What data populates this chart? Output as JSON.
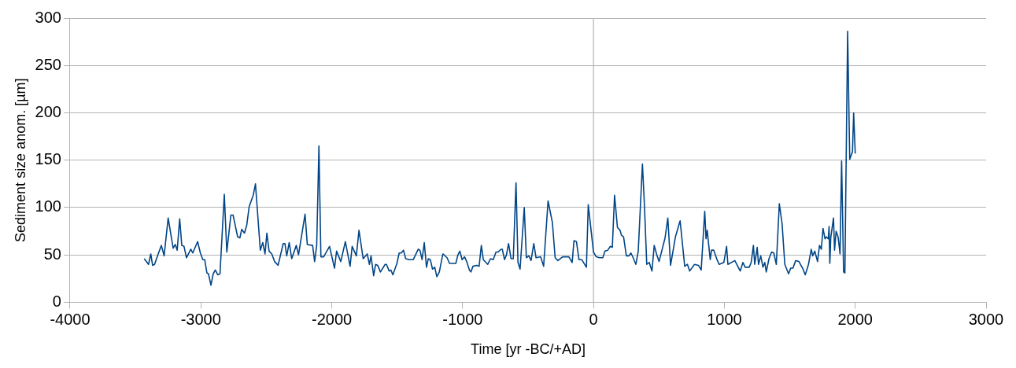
{
  "chart_data": {
    "type": "line",
    "xlabel": "Time [yr -BC/+AD]",
    "ylabel": "Sediment size anom. [µm]",
    "xlim": [
      -4000,
      3000
    ],
    "xticks": [
      -4000,
      -3000,
      -2000,
      -1000,
      0,
      1000,
      2000,
      3000
    ],
    "ylim": [
      0,
      300
    ],
    "yticks": [
      0,
      50,
      100,
      150,
      200,
      250,
      300
    ],
    "grid": "y",
    "legend": false,
    "marker": "none",
    "line_style": "solid",
    "ref_lines": [
      {
        "axis": "x",
        "value": 0,
        "color": "#b3b3b3"
      }
    ],
    "series": [
      {
        "color": "#004586",
        "x": [
          -3433,
          -3400,
          -3383,
          -3369,
          -3354,
          -3329,
          -3302,
          -3281,
          -3250,
          -3212,
          -3196,
          -3181,
          -3162,
          -3146,
          -3129,
          -3110,
          -3077,
          -3062,
          -3025,
          -3004,
          -2985,
          -2971,
          -2954,
          -2942,
          -2923,
          -2906,
          -2890,
          -2871,
          -2854,
          -2821,
          -2802,
          -2771,
          -2754,
          -2719,
          -2702,
          -2688,
          -2667,
          -2650,
          -2631,
          -2600,
          -2583,
          -2546,
          -2527,
          -2510,
          -2496,
          -2479,
          -2458,
          -2437,
          -2410,
          -2371,
          -2358,
          -2344,
          -2325,
          -2306,
          -2271,
          -2254,
          -2204,
          -2187,
          -2146,
          -2131,
          -2115,
          -2098,
          -2083,
          -2062,
          -2017,
          -1979,
          -1963,
          -1931,
          -1896,
          -1860,
          -1844,
          -1812,
          -1792,
          -1760,
          -1729,
          -1712,
          -1700,
          -1680,
          -1665,
          -1649,
          -1628,
          -1592,
          -1582,
          -1561,
          -1548,
          -1533,
          -1502,
          -1485,
          -1469,
          -1452,
          -1435,
          -1408,
          -1377,
          -1339,
          -1326,
          -1310,
          -1293,
          -1276,
          -1262,
          -1247,
          -1230,
          -1213,
          -1197,
          -1178,
          -1151,
          -1119,
          -1100,
          -1052,
          -1036,
          -1021,
          -1004,
          -985,
          -969,
          -948,
          -937,
          -921,
          -891,
          -874,
          -857,
          -842,
          -808,
          -787,
          -766,
          -745,
          -728,
          -707,
          -697,
          -680,
          -665,
          -649,
          -630,
          -613,
          -592,
          -577,
          -561,
          -529,
          -513,
          -494,
          -477,
          -456,
          -439,
          -404,
          -381,
          -347,
          -314,
          -293,
          -272,
          -236,
          -188,
          -163,
          -149,
          -130,
          -111,
          -90,
          -54,
          -40,
          0,
          21,
          46,
          56,
          71,
          88,
          109,
          129,
          144,
          161,
          183,
          203,
          213,
          230,
          251,
          271,
          286,
          303,
          324,
          342,
          374,
          390,
          407,
          426,
          447,
          464,
          484,
          501,
          547,
          568,
          589,
          626,
          662,
          697,
          718,
          735,
          772,
          802,
          823,
          850,
          860,
          869,
          892,
          902,
          919,
          944,
          960,
          996,
          1017,
          1027,
          1080,
          1121,
          1142,
          1159,
          1190,
          1205,
          1222,
          1232,
          1251,
          1261,
          1278,
          1295,
          1309,
          1320,
          1341,
          1361,
          1378,
          1397,
          1420,
          1441,
          1462,
          1491,
          1507,
          1524,
          1545,
          1570,
          1601,
          1618,
          1643,
          1664,
          1675,
          1691,
          1712,
          1727,
          1741,
          1754,
          1769,
          1779,
          1794,
          1800,
          1806,
          1813,
          1834,
          1842,
          1854,
          1869,
          1884,
          1896,
          1911,
          1921,
          1942,
          1958,
          1979,
          1988,
          2000
        ],
        "values": [
          46,
          40,
          51,
          39,
          40,
          50,
          60,
          49,
          89,
          57,
          61,
          55,
          88,
          60,
          59,
          47,
          56,
          52,
          64,
          52,
          45,
          45,
          31,
          30,
          18,
          30,
          34,
          29,
          30,
          114,
          53,
          92,
          92,
          69,
          68,
          77,
          73,
          81,
          101,
          113,
          125,
          55,
          63,
          51,
          73,
          54,
          51,
          43,
          39,
          62,
          62,
          49,
          63,
          46,
          60,
          50,
          93,
          61,
          60,
          43,
          60,
          165,
          48,
          48,
          59,
          36,
          54,
          43,
          64,
          38,
          59,
          49,
          76,
          46,
          51,
          40,
          49,
          28,
          40,
          39,
          32,
          40,
          40,
          33,
          34,
          29,
          41,
          52,
          52,
          55,
          46,
          45,
          45,
          56,
          55,
          45,
          63,
          37,
          46,
          45,
          35,
          37,
          27,
          32,
          51,
          47,
          41,
          41,
          50,
          54,
          45,
          48,
          43,
          34,
          32,
          38,
          39,
          38,
          60,
          45,
          40,
          46,
          45,
          53,
          53,
          56,
          56,
          45,
          50,
          62,
          46,
          46,
          126,
          42,
          35,
          100,
          47,
          49,
          44,
          62,
          47,
          48,
          38,
          107,
          84,
          47,
          44,
          48,
          48,
          42,
          65,
          64,
          45,
          45,
          37,
          103,
          53,
          48,
          47,
          47,
          47,
          54,
          55,
          59,
          58,
          113,
          79,
          76,
          71,
          69,
          49,
          49,
          52,
          47,
          40,
          54,
          146,
          100,
          40,
          42,
          33,
          60,
          50,
          43,
          68,
          89,
          39,
          69,
          86,
          38,
          40,
          33,
          40,
          39,
          34,
          96,
          67,
          76,
          45,
          55,
          55,
          45,
          40,
          42,
          59,
          40,
          44,
          33,
          42,
          37,
          37,
          42,
          60,
          40,
          58,
          40,
          49,
          37,
          42,
          32,
          46,
          53,
          52,
          40,
          104,
          83,
          40,
          30,
          36,
          36,
          44,
          43,
          35,
          29,
          40,
          56,
          49,
          54,
          43,
          60,
          56,
          78,
          67,
          69,
          67,
          80,
          41,
          68,
          89,
          55,
          75,
          69,
          51,
          149,
          32,
          31,
          286,
          151,
          159,
          200,
          157
        ]
      }
    ]
  }
}
